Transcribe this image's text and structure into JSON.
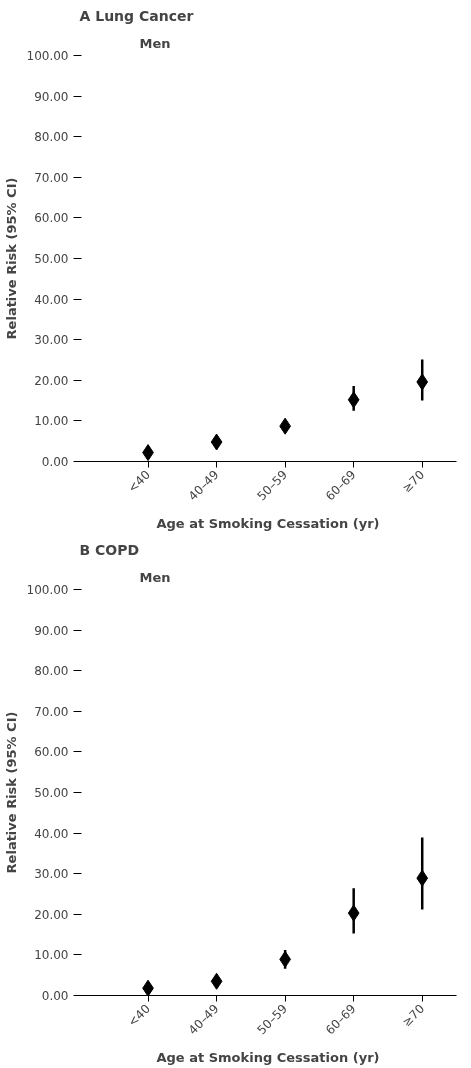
{
  "chart_data": [
    {
      "type": "scatter",
      "title": "A  Lung Cancer",
      "subtitle": "Men",
      "xlabel": "Age at Smoking Cessation (yr)",
      "ylabel": "Relative Risk (95% CI)",
      "categories": [
        "<40",
        "40–49",
        "50–59",
        "60–69",
        "≥70"
      ],
      "series": [
        {
          "color": "#000000",
          "values": [
            2.2,
            4.8,
            8.7,
            15.2,
            19.6
          ],
          "errors": [
            null,
            null,
            null,
            [
              12.5,
              18.6
            ],
            [
              15.0,
              25.1
            ]
          ]
        }
      ],
      "ylim": [
        0,
        100
      ],
      "yticks": [
        {
          "value": 0,
          "label": "0.00"
        },
        {
          "value": 10,
          "label": "10.00"
        },
        {
          "value": 20,
          "label": "20.00"
        },
        {
          "value": 30,
          "label": "30.00"
        },
        {
          "value": 40,
          "label": "40.00"
        },
        {
          "value": 50,
          "label": "50.00"
        },
        {
          "value": 60,
          "label": "60.00"
        },
        {
          "value": 70,
          "label": "70.00"
        },
        {
          "value": 80,
          "label": "80.00"
        },
        {
          "value": 90,
          "label": "90.00"
        },
        {
          "value": 100,
          "label": "100.00"
        }
      ],
      "marker": "diamond",
      "grid": false
    },
    {
      "type": "scatter",
      "title": "B  COPD",
      "subtitle": "Men",
      "xlabel": "Age at Smoking Cessation (yr)",
      "ylabel": "Relative Risk (95% CI)",
      "categories": [
        "<40",
        "40–49",
        "50–59",
        "60–69",
        "≥70"
      ],
      "series": [
        {
          "color": "#000000",
          "values": [
            1.8,
            3.5,
            8.9,
            20.3,
            28.9
          ],
          "errors": [
            null,
            null,
            [
              6.6,
              11.2
            ],
            [
              15.3,
              26.4
            ],
            [
              21.2,
              38.9
            ]
          ]
        }
      ],
      "ylim": [
        0,
        100
      ],
      "yticks": [
        {
          "value": 0,
          "label": "0.00"
        },
        {
          "value": 10,
          "label": "10.00"
        },
        {
          "value": 20,
          "label": "20.00"
        },
        {
          "value": 30,
          "label": "30.00"
        },
        {
          "value": 40,
          "label": "40.00"
        },
        {
          "value": 50,
          "label": "50.00"
        },
        {
          "value": 60,
          "label": "60.00"
        },
        {
          "value": 70,
          "label": "70.00"
        },
        {
          "value": 80,
          "label": "80.00"
        },
        {
          "value": 90,
          "label": "90.00"
        },
        {
          "value": 100,
          "label": "100.00"
        }
      ],
      "marker": "diamond",
      "grid": false
    }
  ]
}
